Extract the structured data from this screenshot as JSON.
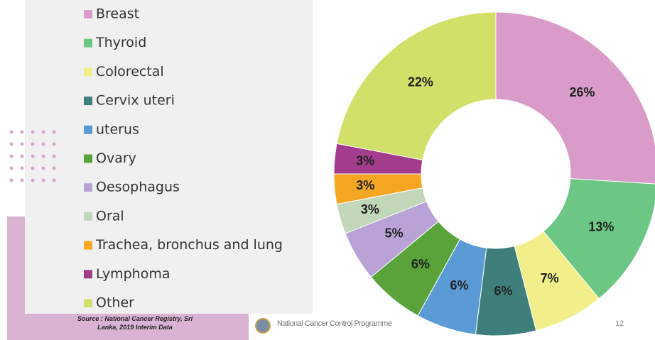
{
  "chart_data": {
    "type": "pie",
    "categories": [
      "Breast",
      "Thyroid",
      "Colorectal",
      "Cervix uteri",
      "uterus",
      "Ovary",
      "Oesophagus",
      "Oral",
      "Trachea, bronchus and lung",
      "Lymphoma",
      "Other"
    ],
    "values": [
      26,
      13,
      7,
      6,
      6,
      6,
      5,
      3,
      3,
      3,
      22
    ],
    "value_labels": [
      "26%",
      "13%",
      "7%",
      "6%",
      "6%",
      "6%",
      "5%",
      "3%",
      "3%",
      "3%",
      "22%"
    ],
    "colors": [
      "#d99cc8",
      "#6cc784",
      "#f2ef8a",
      "#3f7f7a",
      "#5b9bd5",
      "#5aa33a",
      "#b9a3d6",
      "#c2d6b9",
      "#f5a623",
      "#a33c8c",
      "#d2e06a"
    ],
    "legend": "left"
  },
  "source": "Source : National Cancer Registry, Sri Lanka,  2019 Interim Data",
  "footer": "National Cancer Control Programme",
  "page_number": "12"
}
